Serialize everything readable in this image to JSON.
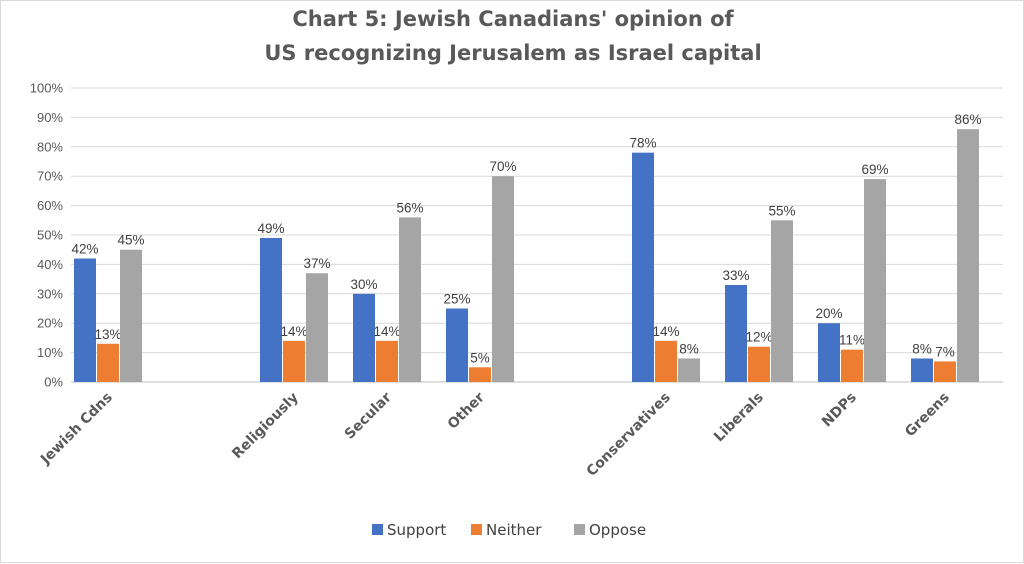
{
  "chart_data": {
    "type": "bar",
    "title_line1": "Chart 5: Jewish Canadians' opinion of",
    "title_line2": "US recognizing Jerusalem as Israel capital",
    "xlabel": "",
    "ylabel": "",
    "ylim": [
      0,
      100
    ],
    "y_ticks": [
      "0%",
      "10%",
      "20%",
      "30%",
      "40%",
      "50%",
      "60%",
      "70%",
      "80%",
      "90%",
      "100%"
    ],
    "grid": true,
    "legend_position": "bottom",
    "categories": [
      "Jewish Cdns",
      "Religiously",
      "Secular",
      "Other",
      "Conservatives",
      "Liberals",
      "NDPs",
      "Greens"
    ],
    "series": [
      {
        "name": "Support",
        "color": "#4472c4",
        "values": [
          42,
          49,
          30,
          25,
          78,
          33,
          20,
          8
        ]
      },
      {
        "name": "Neither",
        "color": "#ed7d31",
        "values": [
          13,
          14,
          14,
          5,
          14,
          12,
          11,
          7
        ]
      },
      {
        "name": "Oppose",
        "color": "#a5a5a5",
        "values": [
          45,
          37,
          56,
          70,
          8,
          55,
          69,
          86
        ]
      }
    ],
    "value_suffix": "%"
  }
}
